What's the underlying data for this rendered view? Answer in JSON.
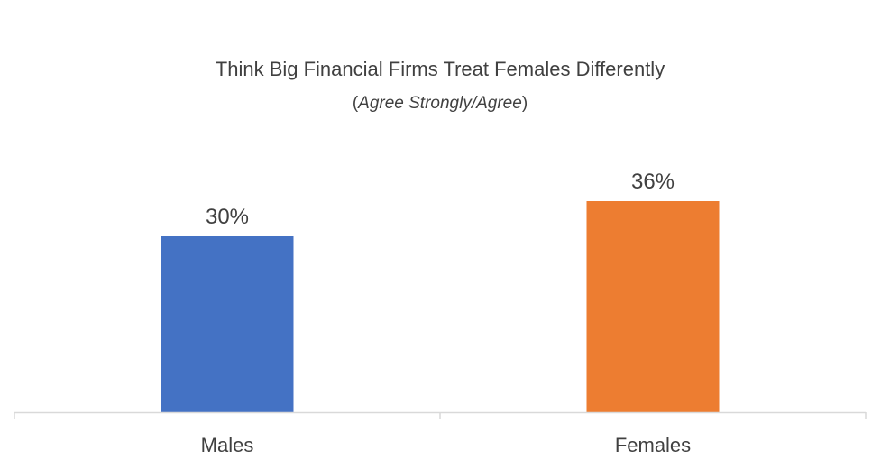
{
  "chart_data": {
    "type": "bar",
    "title": "Think Big Financial Firms Treat Females Differently",
    "subtitle": {
      "open": "(",
      "italic": "Agree Strongly/Agree",
      "close": ")"
    },
    "categories": [
      "Males",
      "Females"
    ],
    "values": [
      30,
      36
    ],
    "data_labels": [
      "30%",
      "36%"
    ],
    "colors": [
      "#4472c4",
      "#ed7d31"
    ],
    "xlabel": "",
    "ylabel": "",
    "ylim": [
      0,
      50
    ],
    "grid": false,
    "legend": "none"
  }
}
